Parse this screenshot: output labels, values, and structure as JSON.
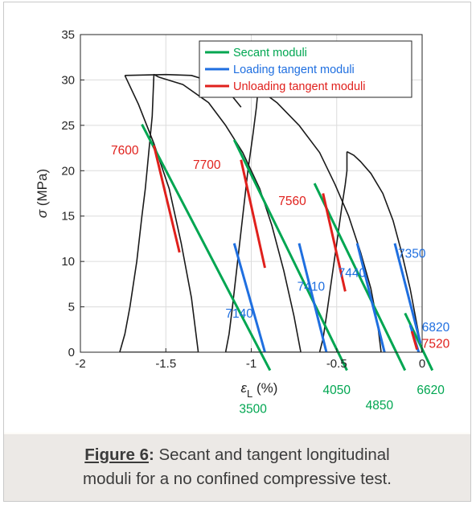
{
  "caption": {
    "label": "Figure 6",
    "separator": ":",
    "text_line1": " Secant and tangent longitudinal",
    "text_line2": "moduli for a no confined compressive test."
  },
  "colors": {
    "secant": "#00a651",
    "loading": "#1f6fe0",
    "unloading": "#e0201c",
    "curve": "#1a1a1a"
  },
  "chart_data": {
    "type": "line",
    "xlabel": "ε_L (%)",
    "ylabel": "σ (MPa)",
    "xlim": [
      -2,
      0
    ],
    "ylim": [
      0,
      35
    ],
    "x_ticks": [
      -2,
      -1.5,
      -1,
      -0.5,
      0
    ],
    "x_tick_labels": [
      "-2",
      "-1.5",
      "-1",
      "-0.5",
      "0"
    ],
    "y_ticks": [
      0,
      5,
      10,
      15,
      20,
      25,
      30,
      35
    ],
    "y_tick_labels": [
      "0",
      "5",
      "10",
      "15",
      "20",
      "25",
      "30",
      "35"
    ],
    "grid": true,
    "legend_position": "top-right",
    "legend": [
      {
        "label": "Secant moduli",
        "color": "#00a651"
      },
      {
        "label": "Loading tangent moduli",
        "color": "#1f6fe0"
      },
      {
        "label": "Unloading tangent moduli",
        "color": "#e0201c"
      }
    ],
    "stress_strain_curve": [
      {
        "kind": "loading",
        "points": [
          [
            0,
            0
          ],
          [
            -0.03,
            3
          ],
          [
            -0.07,
            7
          ],
          [
            -0.12,
            11
          ],
          [
            -0.17,
            14.5
          ],
          [
            -0.23,
            17.5
          ],
          [
            -0.3,
            19.7
          ],
          [
            -0.36,
            21
          ],
          [
            -0.4,
            21.7
          ],
          [
            -0.44,
            22.1
          ]
        ]
      },
      {
        "kind": "unloading",
        "points": [
          [
            -0.44,
            22.1
          ],
          [
            -0.44,
            21
          ],
          [
            -0.44,
            20
          ],
          [
            -0.45,
            18.5
          ],
          [
            -0.47,
            16
          ],
          [
            -0.5,
            12
          ],
          [
            -0.53,
            8
          ],
          [
            -0.56,
            4
          ],
          [
            -0.58,
            1.5
          ],
          [
            -0.6,
            0
          ]
        ]
      },
      {
        "kind": "reloading",
        "points": [
          [
            -0.6,
            0
          ],
          [
            -0.24,
            0
          ],
          [
            -0.26,
            3
          ],
          [
            -0.3,
            7
          ],
          [
            -0.36,
            11
          ],
          [
            -0.43,
            15
          ],
          [
            -0.51,
            18.5
          ],
          [
            -0.6,
            22
          ],
          [
            -0.72,
            25
          ],
          [
            -0.85,
            27.5
          ],
          [
            -0.95,
            28.9
          ]
        ]
      },
      {
        "kind": "unloading",
        "points": [
          [
            -0.95,
            28.9
          ],
          [
            -0.95,
            30.4
          ],
          [
            -0.96,
            29
          ],
          [
            -0.97,
            27
          ],
          [
            -0.99,
            24
          ],
          [
            -1.02,
            20
          ],
          [
            -1.05,
            15
          ],
          [
            -1.08,
            10
          ],
          [
            -1.11,
            5
          ],
          [
            -1.13,
            2
          ],
          [
            -1.15,
            0
          ]
        ]
      },
      {
        "kind": "reloading",
        "points": [
          [
            -1.15,
            0
          ],
          [
            -0.71,
            0
          ],
          [
            -0.75,
            4
          ],
          [
            -0.81,
            9
          ],
          [
            -0.88,
            14
          ],
          [
            -0.95,
            18
          ],
          [
            -1.05,
            22
          ],
          [
            -1.15,
            25
          ],
          [
            -1.25,
            27.5
          ],
          [
            -1.4,
            29.5
          ],
          [
            -1.54,
            30.3
          ]
        ]
      },
      {
        "kind": "unloading",
        "points": [
          [
            -1.54,
            30.3
          ],
          [
            -1.57,
            30.6
          ],
          [
            -1.58,
            26
          ],
          [
            -1.6,
            22
          ],
          [
            -1.62,
            18
          ],
          [
            -1.64,
            15
          ],
          [
            -1.67,
            10
          ],
          [
            -1.71,
            5
          ],
          [
            -1.74,
            2
          ],
          [
            -1.77,
            0
          ]
        ]
      },
      {
        "kind": "reloading",
        "points": [
          [
            -1.77,
            0
          ],
          [
            -1.31,
            0
          ],
          [
            -1.35,
            6
          ],
          [
            -1.41,
            12
          ],
          [
            -1.48,
            18
          ],
          [
            -1.57,
            23
          ],
          [
            -1.66,
            27.3
          ],
          [
            -1.74,
            30.5
          ]
        ]
      },
      {
        "kind": "loading",
        "points": [
          [
            -1.74,
            30.5
          ],
          [
            -1.5,
            30.6
          ],
          [
            -1.35,
            30.5
          ],
          [
            -1.18,
            29.5
          ],
          [
            -1.12,
            28.4
          ],
          [
            -1.06,
            27
          ]
        ]
      }
    ],
    "series": [
      {
        "name": "Secant moduli",
        "color": "#00a651",
        "segments": [
          {
            "label": "3500",
            "points": [
              [
                -1.64,
                25.1
              ],
              [
                -0.89,
                -2
              ]
            ]
          },
          {
            "label": "4050",
            "points": [
              [
                -1.1,
                23.4
              ],
              [
                -0.44,
                -2
              ]
            ]
          },
          {
            "label": "4850",
            "points": [
              [
                -0.63,
                18.6
              ],
              [
                -0.1,
                -2
              ]
            ]
          },
          {
            "label": "6620",
            "points": [
              [
                -0.1,
                4.3
              ],
              [
                0.06,
                -2
              ]
            ]
          }
        ]
      },
      {
        "name": "Loading tangent moduli",
        "color": "#1f6fe0",
        "segments": [
          {
            "label": "7140",
            "points": [
              [
                -1.1,
                12
              ],
              [
                -0.92,
                0
              ]
            ]
          },
          {
            "label": "7410",
            "points": [
              [
                -0.72,
                12
              ],
              [
                -0.56,
                0
              ]
            ]
          },
          {
            "label": "7440",
            "points": [
              [
                -0.38,
                12
              ],
              [
                -0.22,
                0
              ]
            ]
          },
          {
            "label": "7350",
            "points": [
              [
                -0.16,
                12
              ],
              [
                -0.01,
                1
              ]
            ]
          },
          {
            "label": "6820",
            "points": [
              [
                -0.07,
                3
              ],
              [
                -0.02,
                0
              ]
            ]
          }
        ]
      },
      {
        "name": "Unloading tangent moduli",
        "color": "#e0201c",
        "segments": [
          {
            "label": "7600",
            "points": [
              [
                -1.57,
                22.8
              ],
              [
                -1.42,
                11
              ]
            ]
          },
          {
            "label": "7700",
            "points": [
              [
                -1.06,
                21.2
              ],
              [
                -0.92,
                9.3
              ]
            ]
          },
          {
            "label": "7560",
            "points": [
              [
                -0.58,
                17.5
              ],
              [
                -0.45,
                6.7
              ]
            ]
          },
          {
            "label": "7520",
            "points": [
              [
                -0.06,
                2.3
              ],
              [
                -0.03,
                0.3
              ]
            ]
          }
        ]
      }
    ],
    "data_labels": [
      {
        "text": "7600",
        "x": -1.74,
        "y": 21.8,
        "color": "#e0201c"
      },
      {
        "text": "7700",
        "x": -1.26,
        "y": 20.2,
        "color": "#e0201c"
      },
      {
        "text": "7560",
        "x": -0.76,
        "y": 16.2,
        "color": "#e0201c"
      },
      {
        "text": "7520",
        "x": 0.08,
        "y": 0.5,
        "color": "#e0201c"
      },
      {
        "text": "7140",
        "x": -1.07,
        "y": 3.8,
        "color": "#1f6fe0"
      },
      {
        "text": "7410",
        "x": -0.65,
        "y": 6.8,
        "color": "#1f6fe0"
      },
      {
        "text": "7440",
        "x": -0.41,
        "y": 8.3,
        "color": "#1f6fe0"
      },
      {
        "text": "7350",
        "x": -0.06,
        "y": 10.4,
        "color": "#1f6fe0"
      },
      {
        "text": "6820",
        "x": 0.08,
        "y": 2.3,
        "color": "#1f6fe0"
      },
      {
        "text": "3500",
        "x": -0.99,
        "y": -6.7,
        "color": "#00a651"
      },
      {
        "text": "4050",
        "x": -0.5,
        "y": -4.6,
        "color": "#00a651"
      },
      {
        "text": "4850",
        "x": -0.25,
        "y": -6.3,
        "color": "#00a651"
      },
      {
        "text": "6620",
        "x": 0.05,
        "y": -4.6,
        "color": "#00a651"
      }
    ]
  }
}
